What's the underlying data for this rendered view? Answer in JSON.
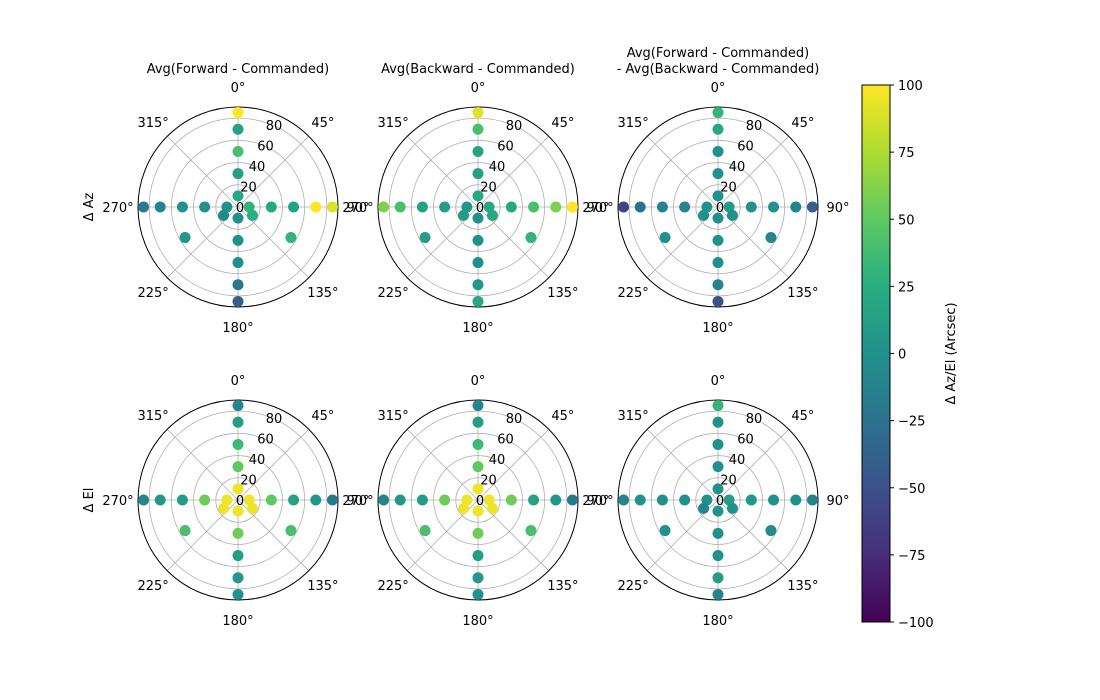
{
  "chart_data": {
    "type": "scatter",
    "projection": "polar",
    "theta_zero_location": "N",
    "theta_direction": "clockwise",
    "r_axis": {
      "inverted": true,
      "range": [
        90,
        0
      ],
      "tick_values": [
        0,
        20,
        40,
        60,
        80
      ],
      "label_angle_deg": 22.5,
      "grid": true
    },
    "theta_tick_labels": [
      "0°",
      "45°",
      "90°",
      "135°",
      "180°",
      "225°",
      "270°",
      "315°"
    ],
    "row_labels": [
      "Δ Az",
      "Δ El"
    ],
    "column_titles": [
      [
        "Avg(Forward - Commanded)"
      ],
      [
        "Avg(Backward - Commanded)"
      ],
      [
        "Avg(Forward - Commanded)",
        "- Avg(Backward - Commanded)"
      ]
    ],
    "colorbar": {
      "label": "Δ Az/El (Arcsec)",
      "cmap": "viridis",
      "range": [
        -100,
        100
      ],
      "ticks": [
        100,
        75,
        50,
        25,
        0,
        -25,
        -50,
        -75,
        -100
      ],
      "tick_labels": [
        "100",
        "75",
        "50",
        "25",
        "0",
        "−25",
        "−50",
        "−75",
        "−100"
      ]
    },
    "point_grid": {
      "azimuth_deg": [
        0,
        90,
        180,
        270
      ],
      "elevation_deg": [
        10,
        30,
        50,
        70,
        85
      ],
      "extra_points": [
        {
          "az": 120,
          "el": 15
        },
        {
          "az": 240,
          "el": 15
        },
        {
          "az": 120,
          "el": 55
        },
        {
          "az": 240,
          "el": 55
        }
      ]
    },
    "panels": [
      {
        "row": 0,
        "col": 0,
        "points": [
          {
            "az": 0,
            "el": 10,
            "value": 20
          },
          {
            "az": 0,
            "el": 30,
            "value": 15
          },
          {
            "az": 0,
            "el": 50,
            "value": 40
          },
          {
            "az": 0,
            "el": 70,
            "value": 15
          },
          {
            "az": 0,
            "el": 85,
            "value": 100
          },
          {
            "az": 90,
            "el": 10,
            "value": 30
          },
          {
            "az": 90,
            "el": 30,
            "value": 20
          },
          {
            "az": 90,
            "el": 50,
            "value": 15
          },
          {
            "az": 90,
            "el": 70,
            "value": 100
          },
          {
            "az": 90,
            "el": 85,
            "value": 90
          },
          {
            "az": 180,
            "el": 10,
            "value": 0
          },
          {
            "az": 180,
            "el": 30,
            "value": 0
          },
          {
            "az": 180,
            "el": 50,
            "value": 0
          },
          {
            "az": 180,
            "el": 70,
            "value": -20
          },
          {
            "az": 180,
            "el": 85,
            "value": -40
          },
          {
            "az": 270,
            "el": 10,
            "value": 0
          },
          {
            "az": 270,
            "el": 30,
            "value": 0
          },
          {
            "az": 270,
            "el": 50,
            "value": 0
          },
          {
            "az": 270,
            "el": 70,
            "value": -10
          },
          {
            "az": 270,
            "el": 85,
            "value": -20
          },
          {
            "az": 120,
            "el": 15,
            "value": 25
          },
          {
            "az": 240,
            "el": 15,
            "value": -5
          },
          {
            "az": 120,
            "el": 55,
            "value": 30
          },
          {
            "az": 240,
            "el": 55,
            "value": 5
          }
        ]
      },
      {
        "row": 0,
        "col": 1,
        "points": [
          {
            "az": 0,
            "el": 10,
            "value": 20
          },
          {
            "az": 0,
            "el": 30,
            "value": 15
          },
          {
            "az": 0,
            "el": 50,
            "value": 15
          },
          {
            "az": 0,
            "el": 70,
            "value": 40
          },
          {
            "az": 0,
            "el": 85,
            "value": 90
          },
          {
            "az": 90,
            "el": 10,
            "value": 20
          },
          {
            "az": 90,
            "el": 30,
            "value": 20
          },
          {
            "az": 90,
            "el": 50,
            "value": 40
          },
          {
            "az": 90,
            "el": 70,
            "value": 60
          },
          {
            "az": 90,
            "el": 85,
            "value": 100
          },
          {
            "az": 180,
            "el": 10,
            "value": 0
          },
          {
            "az": 180,
            "el": 30,
            "value": 0
          },
          {
            "az": 180,
            "el": 50,
            "value": 0
          },
          {
            "az": 180,
            "el": 70,
            "value": 5
          },
          {
            "az": 180,
            "el": 85,
            "value": 20
          },
          {
            "az": 270,
            "el": 10,
            "value": 5
          },
          {
            "az": 270,
            "el": 30,
            "value": 10
          },
          {
            "az": 270,
            "el": 50,
            "value": 15
          },
          {
            "az": 270,
            "el": 70,
            "value": 40
          },
          {
            "az": 270,
            "el": 85,
            "value": 60
          },
          {
            "az": 120,
            "el": 15,
            "value": 20
          },
          {
            "az": 240,
            "el": 15,
            "value": 10
          },
          {
            "az": 120,
            "el": 55,
            "value": 30
          },
          {
            "az": 240,
            "el": 55,
            "value": 10
          }
        ]
      },
      {
        "row": 0,
        "col": 2,
        "points": [
          {
            "az": 0,
            "el": 10,
            "value": 0
          },
          {
            "az": 0,
            "el": 30,
            "value": 0
          },
          {
            "az": 0,
            "el": 50,
            "value": 0
          },
          {
            "az": 0,
            "el": 70,
            "value": 20
          },
          {
            "az": 0,
            "el": 85,
            "value": 30
          },
          {
            "az": 90,
            "el": 10,
            "value": 10
          },
          {
            "az": 90,
            "el": 30,
            "value": 0
          },
          {
            "az": 90,
            "el": 50,
            "value": 0
          },
          {
            "az": 90,
            "el": 70,
            "value": -10
          },
          {
            "az": 90,
            "el": 85,
            "value": -40
          },
          {
            "az": 180,
            "el": 10,
            "value": 0
          },
          {
            "az": 180,
            "el": 30,
            "value": 0
          },
          {
            "az": 180,
            "el": 50,
            "value": 0
          },
          {
            "az": 180,
            "el": 70,
            "value": -10
          },
          {
            "az": 180,
            "el": 85,
            "value": -50
          },
          {
            "az": 270,
            "el": 10,
            "value": 0
          },
          {
            "az": 270,
            "el": 30,
            "value": -10
          },
          {
            "az": 270,
            "el": 50,
            "value": -10
          },
          {
            "az": 270,
            "el": 70,
            "value": -25
          },
          {
            "az": 270,
            "el": 85,
            "value": -60
          },
          {
            "az": 120,
            "el": 15,
            "value": 0
          },
          {
            "az": 240,
            "el": 15,
            "value": 0
          },
          {
            "az": 120,
            "el": 55,
            "value": -10
          },
          {
            "az": 240,
            "el": 55,
            "value": 0
          }
        ]
      },
      {
        "row": 1,
        "col": 0,
        "points": [
          {
            "az": 0,
            "el": 10,
            "value": 95
          },
          {
            "az": 0,
            "el": 30,
            "value": 50
          },
          {
            "az": 0,
            "el": 50,
            "value": 35
          },
          {
            "az": 0,
            "el": 70,
            "value": 10
          },
          {
            "az": 0,
            "el": 85,
            "value": -10
          },
          {
            "az": 90,
            "el": 10,
            "value": 95
          },
          {
            "az": 90,
            "el": 30,
            "value": 50
          },
          {
            "az": 90,
            "el": 50,
            "value": 15
          },
          {
            "az": 90,
            "el": 70,
            "value": 5
          },
          {
            "az": 90,
            "el": 85,
            "value": -20
          },
          {
            "az": 180,
            "el": 10,
            "value": 95
          },
          {
            "az": 180,
            "el": 30,
            "value": 55
          },
          {
            "az": 180,
            "el": 50,
            "value": 10
          },
          {
            "az": 180,
            "el": 70,
            "value": 5
          },
          {
            "az": 180,
            "el": 85,
            "value": 0
          },
          {
            "az": 270,
            "el": 10,
            "value": 95
          },
          {
            "az": 270,
            "el": 30,
            "value": 55
          },
          {
            "az": 270,
            "el": 50,
            "value": 10
          },
          {
            "az": 270,
            "el": 70,
            "value": 5
          },
          {
            "az": 270,
            "el": 85,
            "value": -10
          },
          {
            "az": 120,
            "el": 15,
            "value": 95
          },
          {
            "az": 240,
            "el": 15,
            "value": 95
          },
          {
            "az": 120,
            "el": 55,
            "value": 40
          },
          {
            "az": 240,
            "el": 55,
            "value": 40
          }
        ]
      },
      {
        "row": 1,
        "col": 1,
        "points": [
          {
            "az": 0,
            "el": 10,
            "value": 95
          },
          {
            "az": 0,
            "el": 30,
            "value": 50
          },
          {
            "az": 0,
            "el": 50,
            "value": 35
          },
          {
            "az": 0,
            "el": 70,
            "value": 10
          },
          {
            "az": 0,
            "el": 85,
            "value": -10
          },
          {
            "az": 90,
            "el": 10,
            "value": 95
          },
          {
            "az": 90,
            "el": 30,
            "value": 55
          },
          {
            "az": 90,
            "el": 50,
            "value": 15
          },
          {
            "az": 90,
            "el": 70,
            "value": 5
          },
          {
            "az": 90,
            "el": 85,
            "value": -20
          },
          {
            "az": 180,
            "el": 10,
            "value": 95
          },
          {
            "az": 180,
            "el": 30,
            "value": 55
          },
          {
            "az": 180,
            "el": 50,
            "value": 10
          },
          {
            "az": 180,
            "el": 70,
            "value": 5
          },
          {
            "az": 180,
            "el": 85,
            "value": 0
          },
          {
            "az": 270,
            "el": 10,
            "value": 95
          },
          {
            "az": 270,
            "el": 30,
            "value": 55
          },
          {
            "az": 270,
            "el": 50,
            "value": 10
          },
          {
            "az": 270,
            "el": 70,
            "value": 5
          },
          {
            "az": 270,
            "el": 85,
            "value": -10
          },
          {
            "az": 120,
            "el": 15,
            "value": 95
          },
          {
            "az": 240,
            "el": 15,
            "value": 95
          },
          {
            "az": 120,
            "el": 55,
            "value": 40
          },
          {
            "az": 240,
            "el": 55,
            "value": 40
          }
        ]
      },
      {
        "row": 1,
        "col": 2,
        "points": [
          {
            "az": 0,
            "el": 10,
            "value": 0
          },
          {
            "az": 0,
            "el": 30,
            "value": 0
          },
          {
            "az": 0,
            "el": 50,
            "value": 0
          },
          {
            "az": 0,
            "el": 70,
            "value": 0
          },
          {
            "az": 0,
            "el": 85,
            "value": 30
          },
          {
            "az": 90,
            "el": 10,
            "value": 10
          },
          {
            "az": 90,
            "el": 30,
            "value": 5
          },
          {
            "az": 90,
            "el": 50,
            "value": 0
          },
          {
            "az": 90,
            "el": 70,
            "value": 0
          },
          {
            "az": 90,
            "el": 85,
            "value": -10
          },
          {
            "az": 180,
            "el": 10,
            "value": 0
          },
          {
            "az": 180,
            "el": 30,
            "value": 0
          },
          {
            "az": 180,
            "el": 50,
            "value": 0
          },
          {
            "az": 180,
            "el": 70,
            "value": 10
          },
          {
            "az": 180,
            "el": 85,
            "value": -10
          },
          {
            "az": 270,
            "el": 10,
            "value": 0
          },
          {
            "az": 270,
            "el": 30,
            "value": 0
          },
          {
            "az": 270,
            "el": 50,
            "value": 0
          },
          {
            "az": 270,
            "el": 70,
            "value": 0
          },
          {
            "az": 270,
            "el": 85,
            "value": -10
          },
          {
            "az": 120,
            "el": 15,
            "value": 0
          },
          {
            "az": 240,
            "el": 15,
            "value": -10
          },
          {
            "az": 120,
            "el": 55,
            "value": -5
          },
          {
            "az": 240,
            "el": 55,
            "value": 0
          }
        ]
      }
    ]
  }
}
